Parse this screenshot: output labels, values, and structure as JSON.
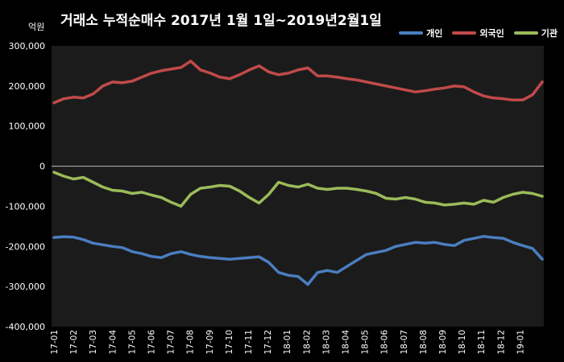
{
  "header": {
    "title": "거래소 누적순매수 2017년 1월 1일~2019년2월1일",
    "unit": "억원"
  },
  "chart_data": {
    "type": "line",
    "title": "거래소 누적순매수 2017년 1월 1일~2019년2월1일",
    "ylabel": "억원",
    "xlabel": "",
    "ylim": [
      -400000,
      300000
    ],
    "yticks": [
      300000,
      200000,
      100000,
      0,
      -100000,
      -200000,
      -300000,
      -400000
    ],
    "ytick_labels": [
      "300,000",
      "200,000",
      "100,000",
      "0",
      "-100,000",
      "-200,000",
      "-300,000",
      "-400,000"
    ],
    "categories": [
      "17-01",
      "17-02",
      "17-03",
      "17-04",
      "17-05",
      "17-06",
      "17-07",
      "17-08",
      "17-09",
      "17-10",
      "17-11",
      "17-12",
      "18-01",
      "18-02",
      "18-03",
      "18-04",
      "18-05",
      "18-06",
      "18-07",
      "18-08",
      "18-09",
      "18-10",
      "18-11",
      "18-12",
      "19-01"
    ],
    "x": [
      "17-01",
      "17-01.5",
      "17-02",
      "17-02.5",
      "17-03",
      "17-03.5",
      "17-04",
      "17-04.5",
      "17-05",
      "17-05.5",
      "17-06",
      "17-06.5",
      "17-07",
      "17-07.5",
      "17-08",
      "17-08.5",
      "17-09",
      "17-09.5",
      "17-10",
      "17-10.5",
      "17-11",
      "17-11.5",
      "17-12",
      "17-12.5",
      "18-01",
      "18-01.5",
      "18-02",
      "18-02.5",
      "18-03",
      "18-03.5",
      "18-04",
      "18-04.5",
      "18-05",
      "18-05.5",
      "18-06",
      "18-06.5",
      "18-07",
      "18-07.5",
      "18-08",
      "18-08.5",
      "18-09",
      "18-09.5",
      "18-10",
      "18-10.5",
      "18-11",
      "18-11.5",
      "18-12",
      "18-12.5",
      "19-01",
      "19-01.5",
      "19-02"
    ],
    "legend_position": "top-right",
    "grid": false,
    "series": [
      {
        "name": "개인",
        "color": "#4a7ec0",
        "values": [
          -178000,
          -176000,
          -177000,
          -183000,
          -192000,
          -196000,
          -200000,
          -203000,
          -213000,
          -218000,
          -225000,
          -228000,
          -218000,
          -213000,
          -220000,
          -225000,
          -228000,
          -230000,
          -232000,
          -230000,
          -228000,
          -226000,
          -240000,
          -265000,
          -272000,
          -275000,
          -295000,
          -265000,
          -260000,
          -265000,
          -250000,
          -235000,
          -220000,
          -215000,
          -210000,
          -200000,
          -195000,
          -190000,
          -192000,
          -190000,
          -195000,
          -198000,
          -185000,
          -180000,
          -175000,
          -178000,
          -180000,
          -190000,
          -198000,
          -205000,
          -232000
        ]
      },
      {
        "name": "외국인",
        "color": "#c04a4a",
        "values": [
          158000,
          168000,
          172000,
          170000,
          180000,
          200000,
          210000,
          208000,
          212000,
          222000,
          232000,
          238000,
          242000,
          246000,
          262000,
          240000,
          232000,
          222000,
          218000,
          228000,
          240000,
          250000,
          235000,
          228000,
          232000,
          240000,
          245000,
          225000,
          225000,
          222000,
          218000,
          215000,
          210000,
          205000,
          200000,
          195000,
          190000,
          185000,
          188000,
          192000,
          195000,
          200000,
          198000,
          185000,
          175000,
          170000,
          168000,
          165000,
          165000,
          178000,
          210000
        ]
      },
      {
        "name": "기관",
        "color": "#9bbb59",
        "values": [
          -15000,
          -25000,
          -32000,
          -28000,
          -40000,
          -52000,
          -60000,
          -62000,
          -68000,
          -65000,
          -72000,
          -78000,
          -90000,
          -100000,
          -70000,
          -55000,
          -52000,
          -48000,
          -50000,
          -62000,
          -78000,
          -92000,
          -70000,
          -40000,
          -48000,
          -52000,
          -45000,
          -55000,
          -58000,
          -55000,
          -55000,
          -58000,
          -62000,
          -68000,
          -80000,
          -82000,
          -78000,
          -82000,
          -90000,
          -92000,
          -97000,
          -95000,
          -92000,
          -95000,
          -85000,
          -90000,
          -78000,
          -70000,
          -65000,
          -68000,
          -75000
        ]
      }
    ]
  }
}
